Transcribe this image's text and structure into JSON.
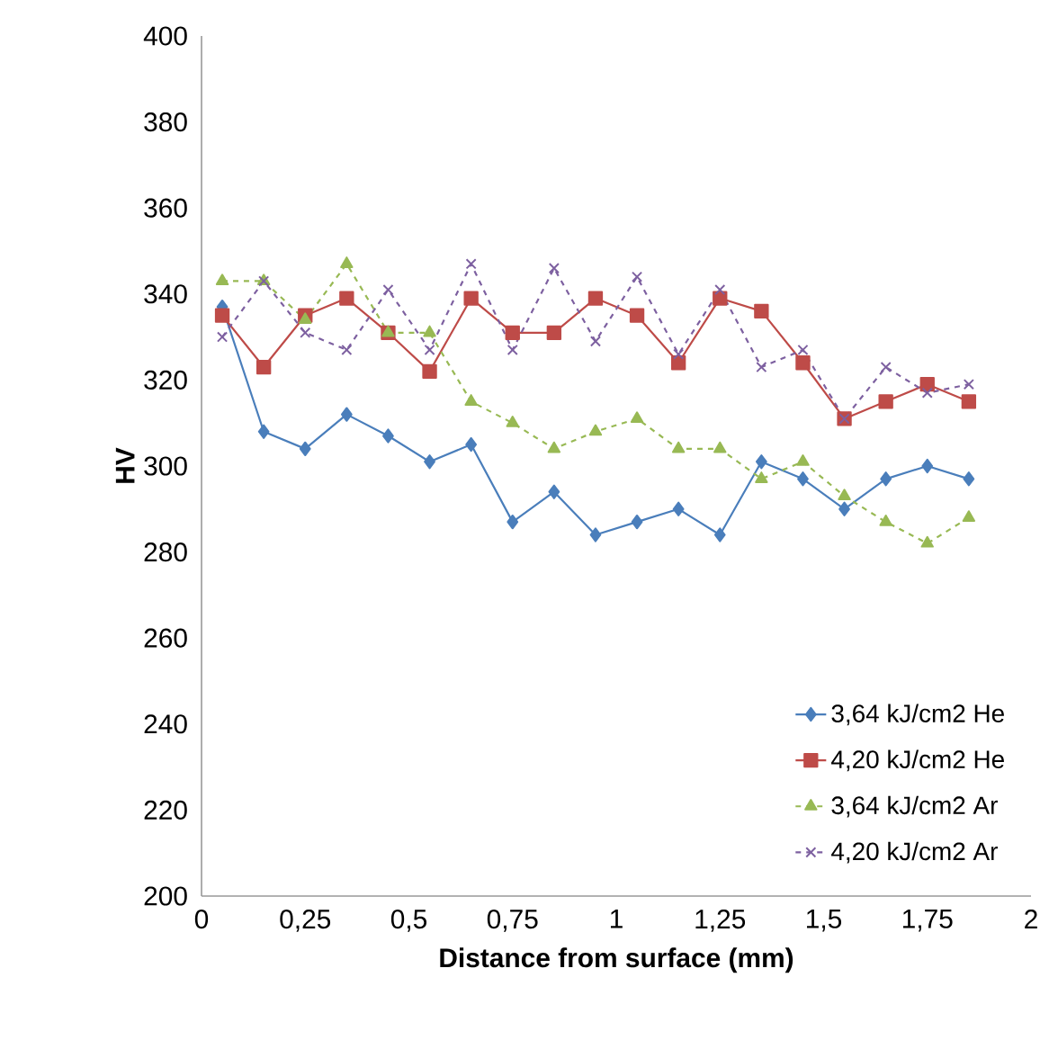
{
  "chart_data": {
    "type": "line",
    "xlabel": "Distance from surface (mm)",
    "ylabel": "HV",
    "x": [
      0.05,
      0.15,
      0.25,
      0.35,
      0.45,
      0.55,
      0.65,
      0.75,
      0.85,
      0.95,
      1.05,
      1.15,
      1.25,
      1.35,
      1.45,
      1.55,
      1.65,
      1.75,
      1.85
    ],
    "xlim": [
      0,
      2
    ],
    "ylim": [
      200,
      400
    ],
    "xticks": [
      0,
      {
        "value": 0.25,
        "label": "0,25"
      },
      {
        "value": 0.5,
        "label": "0,5"
      },
      {
        "value": 0.75,
        "label": "0,75"
      },
      1,
      {
        "value": 1.25,
        "label": "1,25"
      },
      {
        "value": 1.5,
        "label": "1,5"
      },
      {
        "value": 1.75,
        "label": "1,75"
      },
      2
    ],
    "yticks": [
      200,
      220,
      240,
      260,
      280,
      300,
      320,
      340,
      360,
      380,
      400
    ],
    "grid": false,
    "legend": "bottom right",
    "series": [
      {
        "name": "3,64 kJ/cm2 He",
        "color": "#4a7ebb",
        "marker": "diamond",
        "line_style": "solid",
        "values": [
          337,
          308,
          304,
          312,
          307,
          301,
          305,
          287,
          294,
          284,
          287,
          290,
          284,
          301,
          297,
          290,
          297,
          300,
          297
        ]
      },
      {
        "name": "4,20 kJ/cm2 He",
        "color": "#be4b48",
        "marker": "square",
        "line_style": "solid",
        "values": [
          335,
          323,
          335,
          339,
          331,
          322,
          339,
          331,
          331,
          339,
          335,
          324,
          339,
          336,
          324,
          311,
          315,
          319,
          315
        ]
      },
      {
        "name": "3,64 kJ/cm2 Ar",
        "color": "#98b954",
        "marker": "triangle",
        "line_style": "dashed",
        "values": [
          343,
          343,
          334,
          347,
          331,
          331,
          315,
          310,
          304,
          308,
          311,
          304,
          304,
          297,
          301,
          293,
          287,
          282,
          288
        ]
      },
      {
        "name": "4,20 kJ/cm2 Ar",
        "color": "#7d60a0",
        "marker": "cross",
        "line_style": "dashed",
        "values": [
          330,
          343,
          331,
          327,
          341,
          327,
          347,
          327,
          346,
          329,
          344,
          326,
          341,
          323,
          327,
          311,
          323,
          317,
          319
        ]
      }
    ]
  }
}
